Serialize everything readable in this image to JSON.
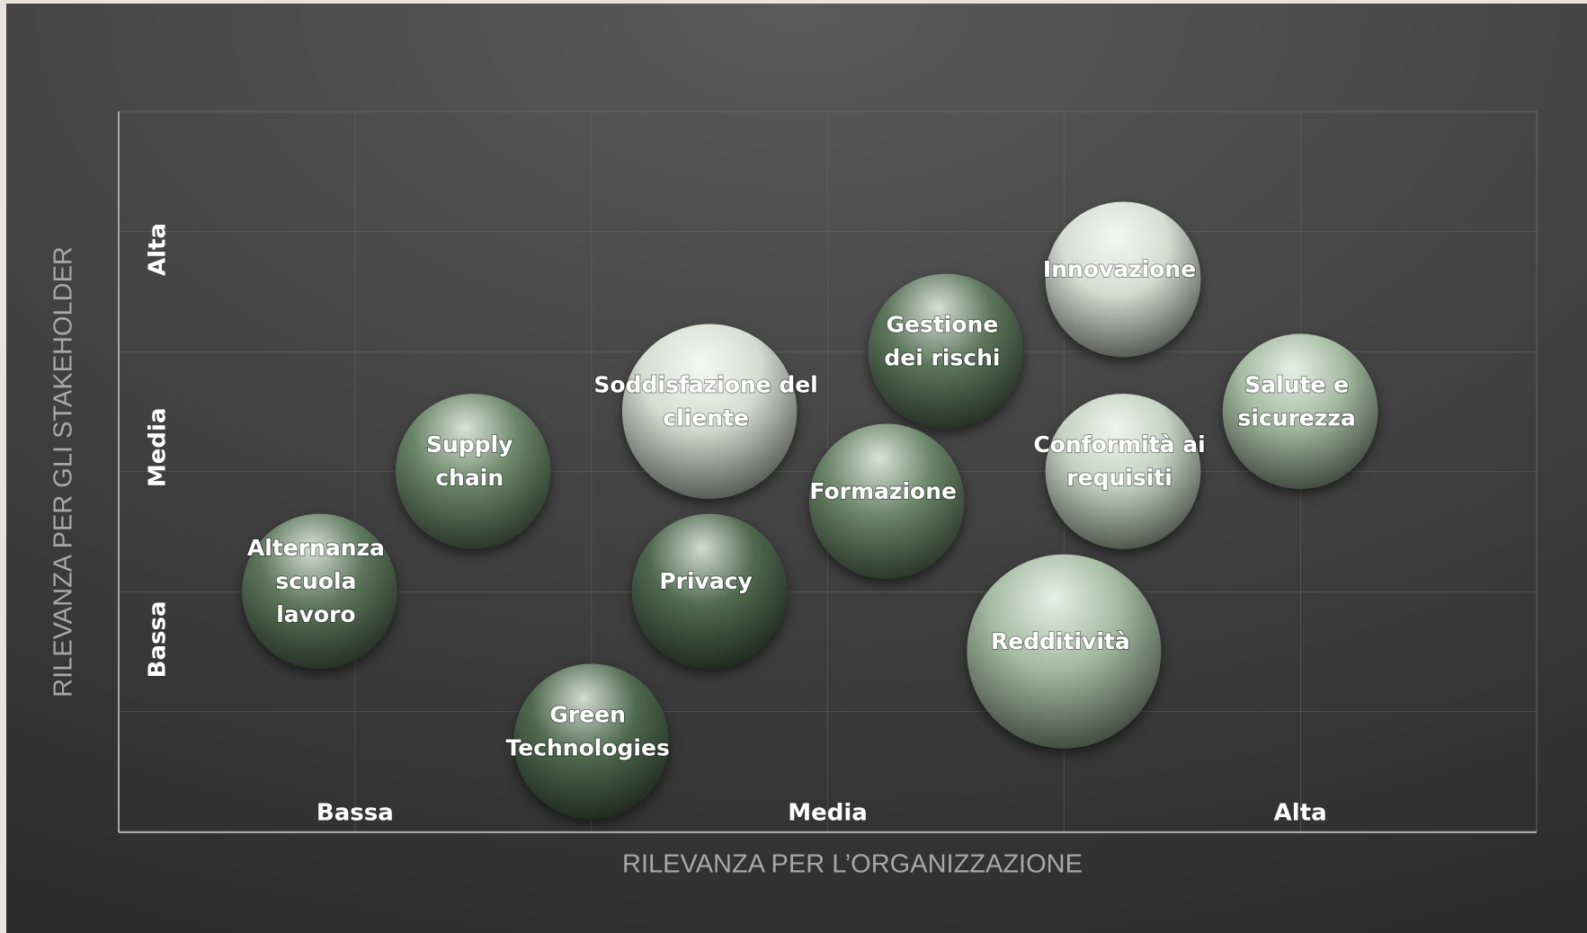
{
  "chart_data": {
    "type": "bubble",
    "xlabel": "RILEVANZA PER L’ORGANIZZAZIONE",
    "ylabel": "RILEVANZA PER GLI STAKEHOLDER",
    "xlim": [
      0,
      6
    ],
    "ylim": [
      0,
      6
    ],
    "xticks": [
      {
        "value": 1,
        "label": "Bassa"
      },
      {
        "value": 3,
        "label": "Media"
      },
      {
        "value": 5,
        "label": "Alta"
      }
    ],
    "yticks": [
      {
        "value": 1.6,
        "label": "Bassa"
      },
      {
        "value": 3.2,
        "label": "Media"
      },
      {
        "value": 4.85,
        "label": "Alta"
      }
    ],
    "series": [
      {
        "labels": [
          [
            "Alternanza",
            "scuola",
            "lavoro"
          ],
          [
            "Supply",
            "chain"
          ],
          [
            "Soddisfazione del",
            "cliente"
          ],
          [
            "Privacy"
          ],
          [
            "Green",
            "Technologies"
          ],
          [
            "Gestione",
            "dei rischi"
          ],
          [
            "Formazione"
          ],
          [
            "Innovazione"
          ],
          [
            "Conformità ai",
            "requisiti"
          ],
          [
            "Salute e",
            "sicurezza"
          ],
          [
            "Redditività"
          ]
        ],
        "x": [
          0.85,
          1.5,
          2.5,
          2.5,
          2.0,
          3.5,
          3.25,
          4.25,
          4.25,
          5.0,
          4.0
        ],
        "values": [
          2.0,
          3.0,
          3.5,
          2.0,
          0.75,
          4.0,
          2.75,
          4.6,
          3.0,
          3.5,
          1.5
        ],
        "sizes": [
          8,
          8,
          9,
          8,
          8,
          8,
          8,
          8,
          8,
          8,
          10
        ],
        "colors": [
          "#5d775c",
          "#6a8668",
          "#d6ddd4",
          "#4f6a4f",
          "#4f6a4f",
          "#5d775c",
          "#6a8668",
          "#d6ddd4",
          "#c6d2c3",
          "#a4baa1",
          "#a4baa1"
        ]
      }
    ]
  }
}
